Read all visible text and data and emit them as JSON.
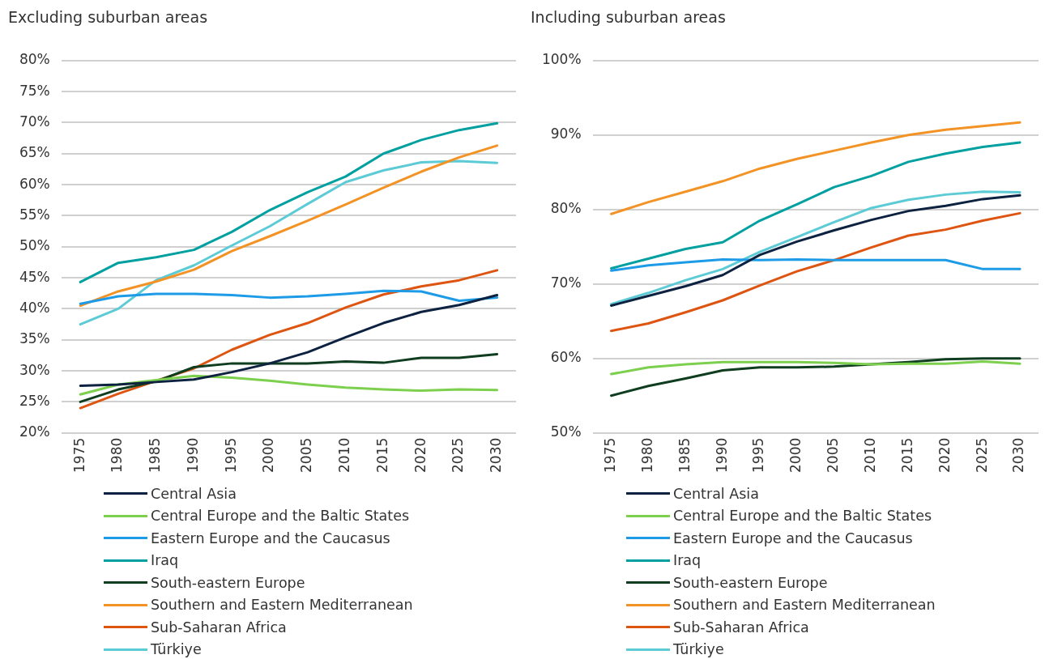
{
  "chart_data": [
    {
      "type": "line",
      "title": "Excluding suburban areas",
      "categories": [
        "1975",
        "1980",
        "1985",
        "1990",
        "1995",
        "2000",
        "2005",
        "2010",
        "2015",
        "2020",
        "2025",
        "2030"
      ],
      "ylim": [
        20,
        80
      ],
      "yticks": [
        {
          "value": 20,
          "label": "20%"
        },
        {
          "value": 25,
          "label": "25%"
        },
        {
          "value": 30,
          "label": "30%"
        },
        {
          "value": 35,
          "label": "35%"
        },
        {
          "value": 40,
          "label": "40%"
        },
        {
          "value": 45,
          "label": "45%"
        },
        {
          "value": 50,
          "label": "50%"
        },
        {
          "value": 55,
          "label": "55%"
        },
        {
          "value": 60,
          "label": "60%"
        },
        {
          "value": 65,
          "label": "65%"
        },
        {
          "value": 70,
          "label": "70%"
        },
        {
          "value": 75,
          "label": "75%"
        },
        {
          "value": 80,
          "label": "80%"
        }
      ],
      "grid": "y",
      "legend": "bottom",
      "marker": "none",
      "line_style": "solid",
      "series": [
        {
          "name": "Central Asia",
          "color": "#0d2240",
          "values": [
            27.6,
            27.8,
            28.2,
            28.6,
            29.8,
            31.2,
            33.0,
            35.4,
            37.7,
            39.5,
            40.6,
            42.2
          ]
        },
        {
          "name": "Central Europe and the Baltic States",
          "color": "#7dcf4e",
          "values": [
            26.2,
            27.8,
            28.5,
            29.2,
            28.9,
            28.4,
            27.8,
            27.3,
            27.0,
            26.8,
            27.0,
            26.9
          ]
        },
        {
          "name": "Eastern Europe and the Caucasus",
          "color": "#1e9be6",
          "values": [
            40.8,
            42.0,
            42.4,
            42.4,
            42.2,
            41.8,
            42.0,
            42.4,
            42.9,
            42.8,
            41.3,
            41.8
          ]
        },
        {
          "name": "Iraq",
          "color": "#00a0a0",
          "values": [
            44.3,
            47.4,
            48.3,
            49.5,
            52.4,
            55.9,
            58.8,
            61.3,
            65.0,
            67.2,
            68.8,
            69.9
          ]
        },
        {
          "name": "South-eastern Europe",
          "color": "#0f3d1f",
          "values": [
            25.0,
            27.0,
            28.3,
            30.6,
            31.2,
            31.2,
            31.2,
            31.5,
            31.3,
            32.1,
            32.1,
            32.7
          ]
        },
        {
          "name": "Southern and Eastern Mediterranean",
          "color": "#f39325",
          "values": [
            40.5,
            42.8,
            44.4,
            46.3,
            49.3,
            51.7,
            54.2,
            56.8,
            59.5,
            62.1,
            64.4,
            66.3
          ]
        },
        {
          "name": "Sub-Saharan Africa",
          "color": "#dd5511",
          "values": [
            24.0,
            26.3,
            28.4,
            30.4,
            33.4,
            35.8,
            37.7,
            40.2,
            42.3,
            43.6,
            44.6,
            46.2
          ]
        },
        {
          "name": "Türkiye",
          "color": "#5ccbd6",
          "values": [
            37.5,
            40.0,
            44.6,
            47.0,
            50.2,
            53.3,
            56.9,
            60.4,
            62.3,
            63.6,
            63.8,
            63.5
          ]
        }
      ]
    },
    {
      "type": "line",
      "title": "Including suburban areas",
      "categories": [
        "1975",
        "1980",
        "1985",
        "1990",
        "1995",
        "2000",
        "2005",
        "2010",
        "2015",
        "2020",
        "2025",
        "2030"
      ],
      "ylim": [
        50,
        100
      ],
      "yticks": [
        {
          "value": 50,
          "label": "50%"
        },
        {
          "value": 60,
          "label": "60%"
        },
        {
          "value": 70,
          "label": "70%"
        },
        {
          "value": 80,
          "label": "80%"
        },
        {
          "value": 90,
          "label": "90%"
        },
        {
          "value": 100,
          "label": "100%"
        }
      ],
      "grid": "y",
      "legend": "bottom",
      "marker": "none",
      "line_style": "solid",
      "series": [
        {
          "name": "Central Asia",
          "color": "#0d2240",
          "values": [
            67.1,
            68.4,
            69.7,
            71.2,
            73.9,
            75.7,
            77.2,
            78.6,
            79.8,
            80.5,
            81.4,
            81.9
          ]
        },
        {
          "name": "Central Europe and the Baltic States",
          "color": "#7dcf4e",
          "values": [
            57.9,
            58.8,
            59.2,
            59.5,
            59.5,
            59.5,
            59.4,
            59.2,
            59.3,
            59.3,
            59.6,
            59.3
          ]
        },
        {
          "name": "Eastern Europe and the Caucasus",
          "color": "#1e9be6",
          "values": [
            71.8,
            72.5,
            72.9,
            73.3,
            73.2,
            73.3,
            73.2,
            73.2,
            73.2,
            73.2,
            72.0,
            72.0
          ]
        },
        {
          "name": "Iraq",
          "color": "#00a0a0",
          "values": [
            72.1,
            73.4,
            74.7,
            75.6,
            78.5,
            80.7,
            83.0,
            84.5,
            86.4,
            87.5,
            88.4,
            89.0
          ]
        },
        {
          "name": "South-eastern Europe",
          "color": "#0f3d1f",
          "values": [
            55.0,
            56.3,
            57.3,
            58.4,
            58.8,
            58.8,
            58.9,
            59.2,
            59.5,
            59.9,
            60.0,
            60.0
          ]
        },
        {
          "name": "Southern and Eastern Mediterranean",
          "color": "#f39325",
          "values": [
            79.4,
            81.0,
            82.4,
            83.8,
            85.5,
            86.8,
            87.9,
            89.0,
            90.0,
            90.7,
            91.2,
            91.7
          ]
        },
        {
          "name": "Sub-Saharan Africa",
          "color": "#dd5511",
          "values": [
            63.7,
            64.7,
            66.2,
            67.8,
            69.8,
            71.7,
            73.2,
            74.9,
            76.5,
            77.3,
            78.5,
            79.5
          ]
        },
        {
          "name": "Türkiye",
          "color": "#5ccbd6",
          "values": [
            67.3,
            68.8,
            70.5,
            72.0,
            74.3,
            76.3,
            78.3,
            80.2,
            81.3,
            82.0,
            82.4,
            82.3
          ]
        }
      ]
    }
  ]
}
